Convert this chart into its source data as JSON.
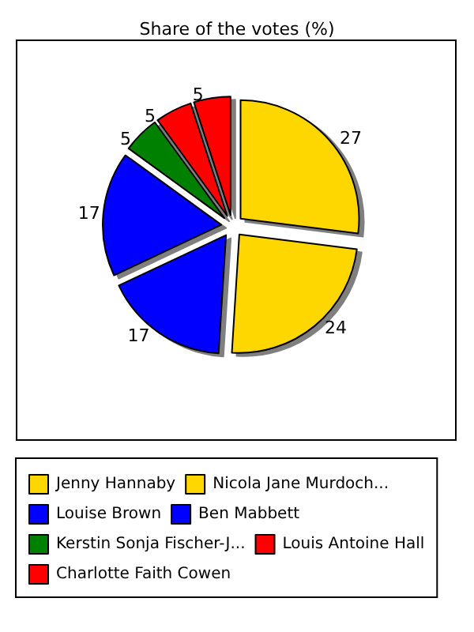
{
  "chart_data": {
    "type": "pie",
    "title": "Share of the votes (%)",
    "categories": [
      "Jenny Hannaby",
      "Nicola Jane Murdoch...",
      "Louise Brown",
      "Ben Mabbett",
      "Kerstin Sonja Fischer-J...",
      "Louis Antoine Hall",
      "Charlotte Faith Cowen"
    ],
    "values": [
      27,
      24,
      17,
      17,
      5,
      5,
      5
    ],
    "colors": [
      "#ffd700",
      "#ffd700",
      "#0000ff",
      "#0000ff",
      "#008000",
      "#ff0000",
      "#ff0000"
    ],
    "data_labels": true,
    "legend": "bottom"
  }
}
